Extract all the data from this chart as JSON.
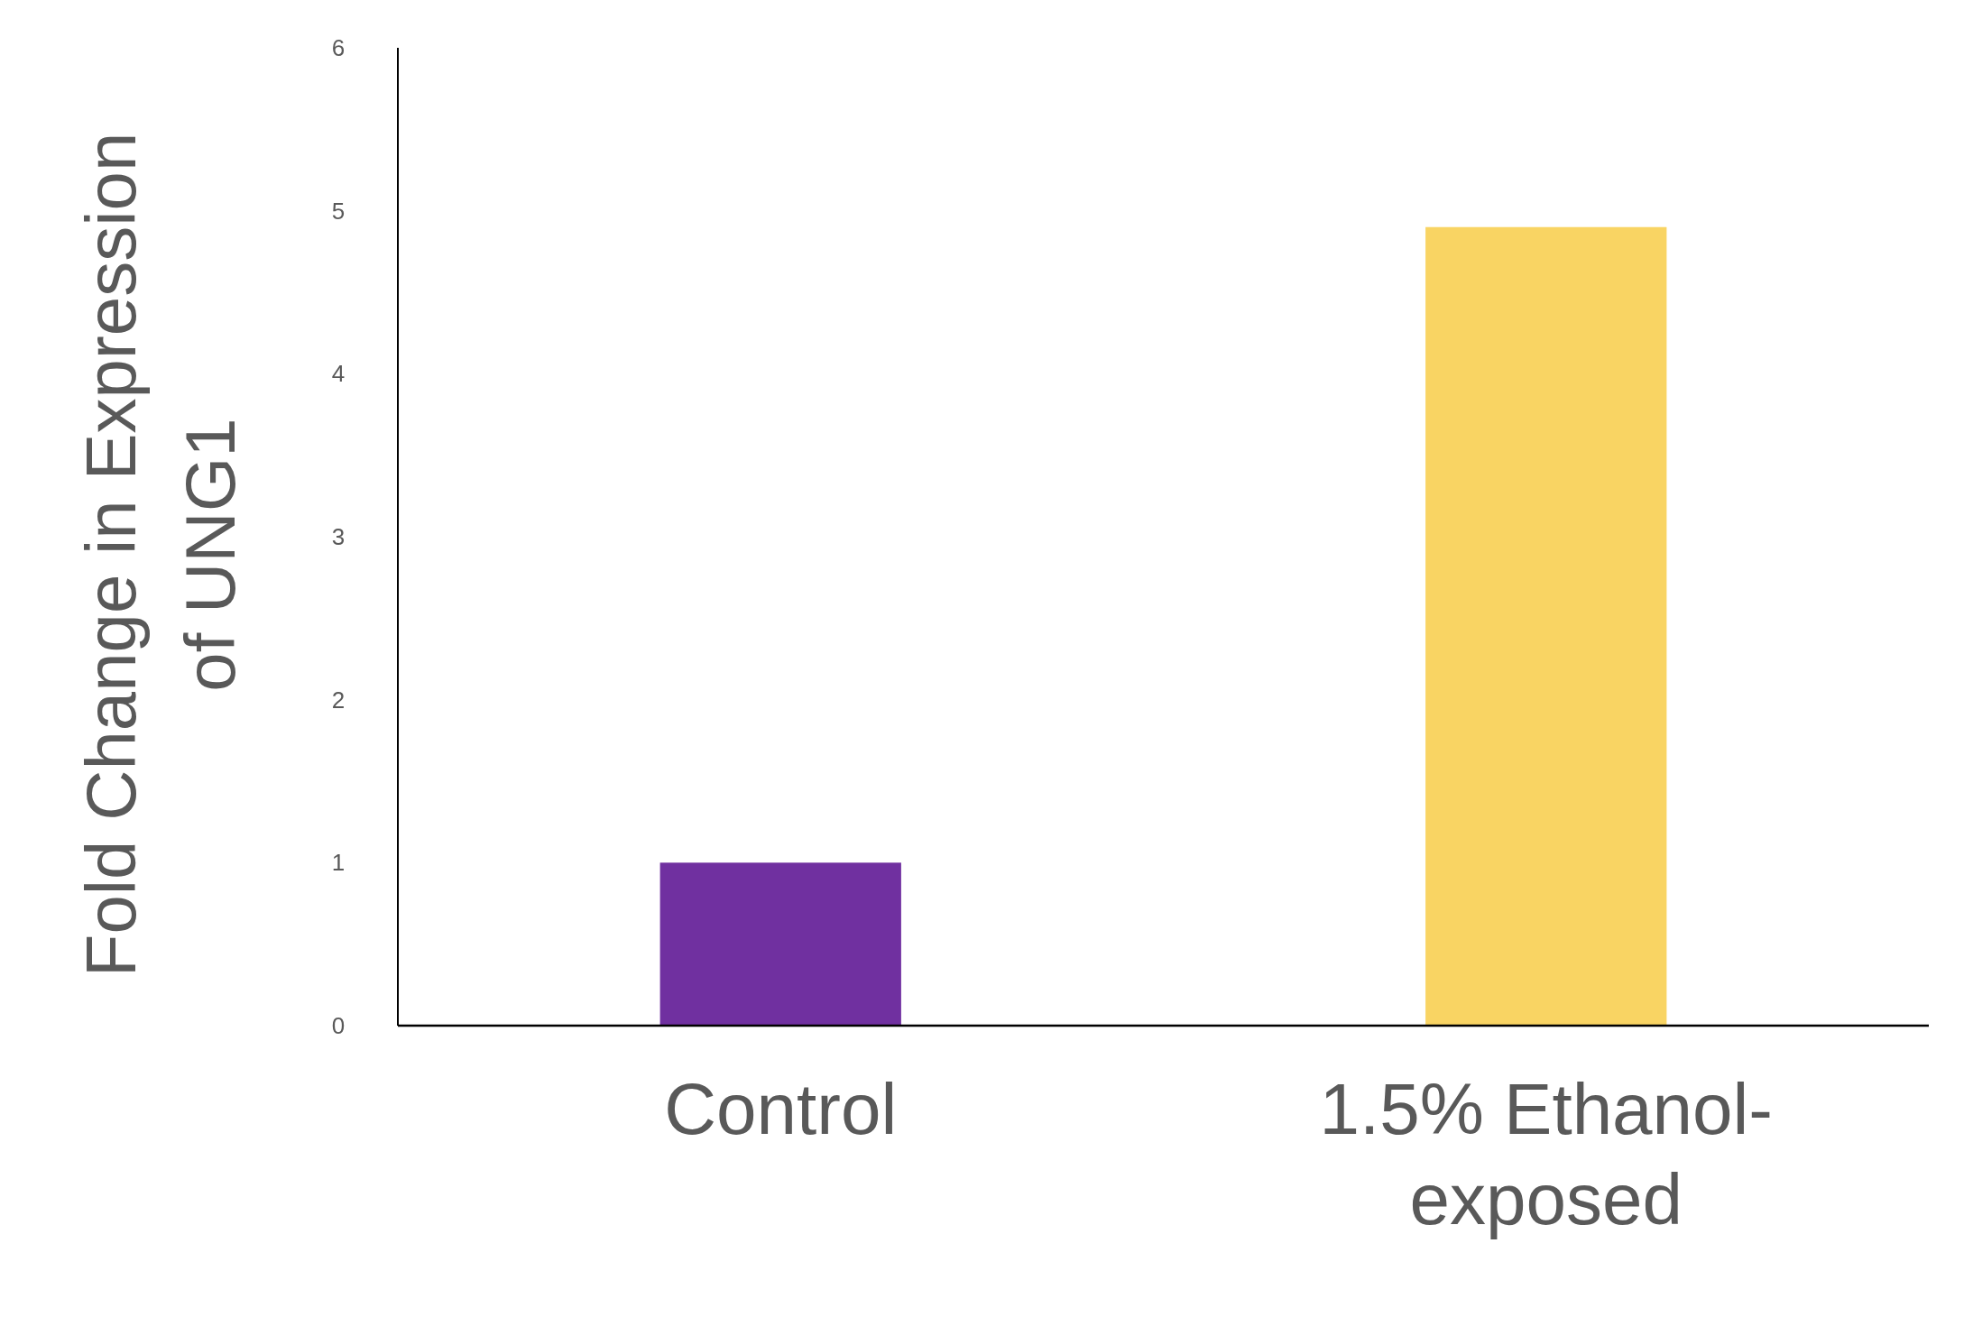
{
  "chart_data": {
    "type": "bar",
    "ylabel": "Fold Change in Expression of UNG1",
    "categories": [
      "Control",
      "1.5% Ethanol-exposed"
    ],
    "values": [
      1,
      4.9
    ],
    "colors": [
      "#7030a0",
      "#f9d463"
    ],
    "ylim": [
      0,
      6
    ],
    "yticks": [
      0,
      1,
      2,
      3,
      4,
      5,
      6
    ],
    "grid": false
  }
}
